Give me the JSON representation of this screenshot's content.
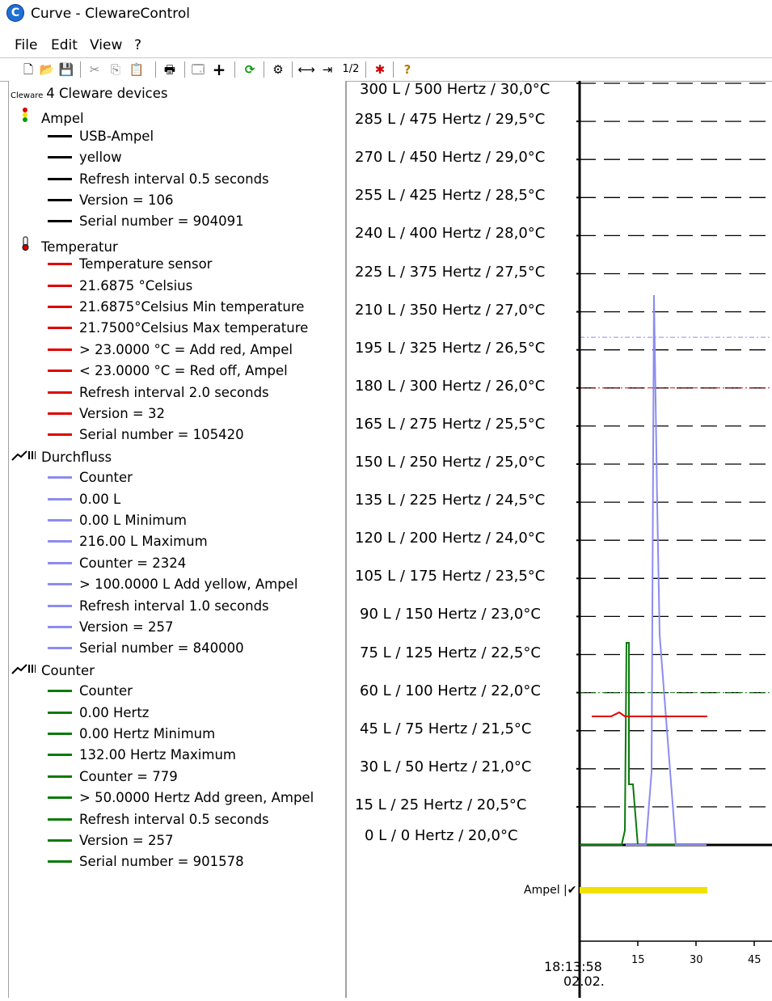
{
  "window": {
    "title": "Curve - ClewareControl",
    "icon": "cleware-app-icon"
  },
  "menu": [
    "File",
    "Edit",
    "View",
    "?"
  ],
  "toolbar": {
    "ratio_label": "1/2",
    "icons": [
      "new-file-icon",
      "open-folder-icon",
      "save-icon",
      "cut-icon",
      "copy-icon",
      "paste-icon",
      "print-icon",
      "window-icon",
      "add-icon",
      "refresh-icon",
      "settings-icon",
      "expand-horizontal-icon",
      "shrink-horizontal-icon",
      "bug-icon",
      "help-icon"
    ]
  },
  "tree": {
    "root": {
      "logo": "Cleware",
      "label": "4 Cleware devices"
    },
    "groups": [
      {
        "label": "Ampel",
        "icon": "traffic-light-icon",
        "color": "#000000",
        "items": [
          "USB-Ampel",
          "yellow",
          "Refresh interval 0.5 seconds",
          "Version = 106",
          "Serial number = 904091"
        ]
      },
      {
        "label": "Temperatur",
        "icon": "thermometer-icon",
        "color": "#e00000",
        "items": [
          "Temperature sensor",
          "21.6875 °Celsius",
          "21.6875°Celsius Min temperature",
          "21.7500°Celsius Max temperature",
          "> 23.0000 °C = Add red, Ampel",
          "< 23.0000 °C = Red off, Ampel",
          "Refresh interval 2.0 seconds",
          "Version = 32",
          "Serial number = 105420"
        ]
      },
      {
        "label": "Durchfluss",
        "icon": "chart-counter-icon",
        "color": "#8c8cf0",
        "items": [
          "Counter",
          "0.00 L",
          "0.00 L  Minimum",
          "216.00 L  Maximum",
          "Counter = 2324",
          "> 100.0000 L Add yellow, Ampel",
          "Refresh interval 1.0 seconds",
          "Version = 257",
          "Serial number = 840000"
        ]
      },
      {
        "label": "Counter",
        "icon": "chart-counter-icon",
        "color": "#0a7a0a",
        "items": [
          "Counter",
          "0.00 Hertz",
          "0.00 Hertz  Minimum",
          "132.00 Hertz  Maximum",
          "Counter = 779",
          "> 50.0000 Hertz Add green, Ampel",
          "Refresh interval 0.5 seconds",
          "Version = 257",
          "Serial number = 901578"
        ]
      }
    ]
  },
  "chart": {
    "y_labels": [
      "300 L / 500 Hertz /  30,0°C",
      "285 L / 475 Hertz /  29,5°C",
      "270 L / 450 Hertz /  29,0°C",
      "255 L / 425 Hertz /  28,5°C",
      "240 L / 400 Hertz /  28,0°C",
      "225 L / 375 Hertz /  27,5°C",
      "210 L / 350 Hertz /  27,0°C",
      "195 L / 325 Hertz /  26,5°C",
      "180 L / 300 Hertz /  26,0°C",
      "165 L / 275 Hertz /  25,5°C",
      "150 L / 250 Hertz /  25,0°C",
      "135 L / 225 Hertz /  24,5°C",
      "120 L / 200 Hertz /  24,0°C",
      "105 L / 175 Hertz /  23,5°C",
      "90 L / 150 Hertz /  23,0°C",
      "75 L / 125 Hertz /  22,5°C",
      "60 L / 100 Hertz /  22,0°C",
      "45 L /  75 Hertz /  21,5°C",
      "30 L /  50 Hertz /  21,0°C",
      "15 L /  25 Hertz /  20,5°C",
      "0 L /   0 Hertz /  20,0°C"
    ],
    "ampel_label": "Ampel |✔",
    "time_label": "18:13:58",
    "date_label": "02.02.",
    "x_ticks": [
      "15",
      "30",
      "45"
    ],
    "colors": {
      "temperature": "#e00000",
      "flow": "#8c8cf0",
      "counter": "#0a7a0a",
      "ampel": "#f2e000"
    }
  }
}
